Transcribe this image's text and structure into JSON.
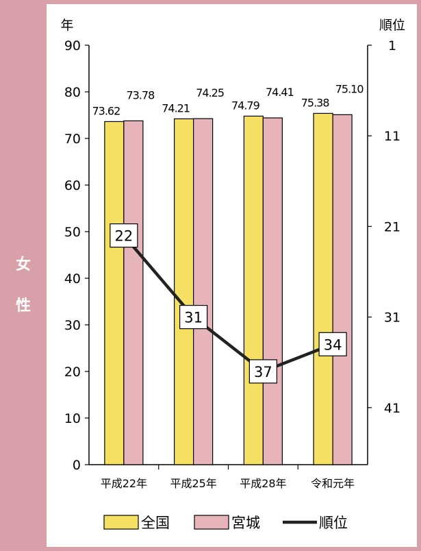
{
  "side_label": [
    "女",
    "性"
  ],
  "chart_data": {
    "type": "bar",
    "categories": [
      "平成22年",
      "平成25年",
      "平成28年",
      "令和元年"
    ],
    "series": [
      {
        "name": "全国",
        "values": [
          73.62,
          74.21,
          74.79,
          75.38
        ],
        "labels": [
          "73.62",
          "74.21",
          "74.79",
          "75.38"
        ],
        "color": "#f5e063"
      },
      {
        "name": "宮城",
        "values": [
          73.78,
          74.25,
          74.41,
          75.1
        ],
        "labels": [
          "73.78",
          "74.25",
          "74.41",
          "75.10"
        ],
        "color": "#e6b4b9"
      }
    ],
    "line_series": {
      "name": "順位",
      "values": [
        22,
        31,
        37,
        34
      ],
      "labels": [
        "22",
        "31",
        "37",
        "34"
      ],
      "color": "#222222",
      "axis": "right"
    },
    "ylabel": "年",
    "ylim": [
      0,
      90
    ],
    "yticks": [
      "0",
      "10",
      "20",
      "30",
      "40",
      "50",
      "60",
      "70",
      "80",
      "90"
    ],
    "y2label": "順位",
    "y2lim": [
      1,
      47
    ],
    "y2_inverted": true,
    "y2ticks": [
      "1",
      "11",
      "21",
      "31",
      "41"
    ],
    "legend": [
      "全国",
      "宮城",
      "順位"
    ],
    "legend_position": "bottom",
    "grid": false
  }
}
